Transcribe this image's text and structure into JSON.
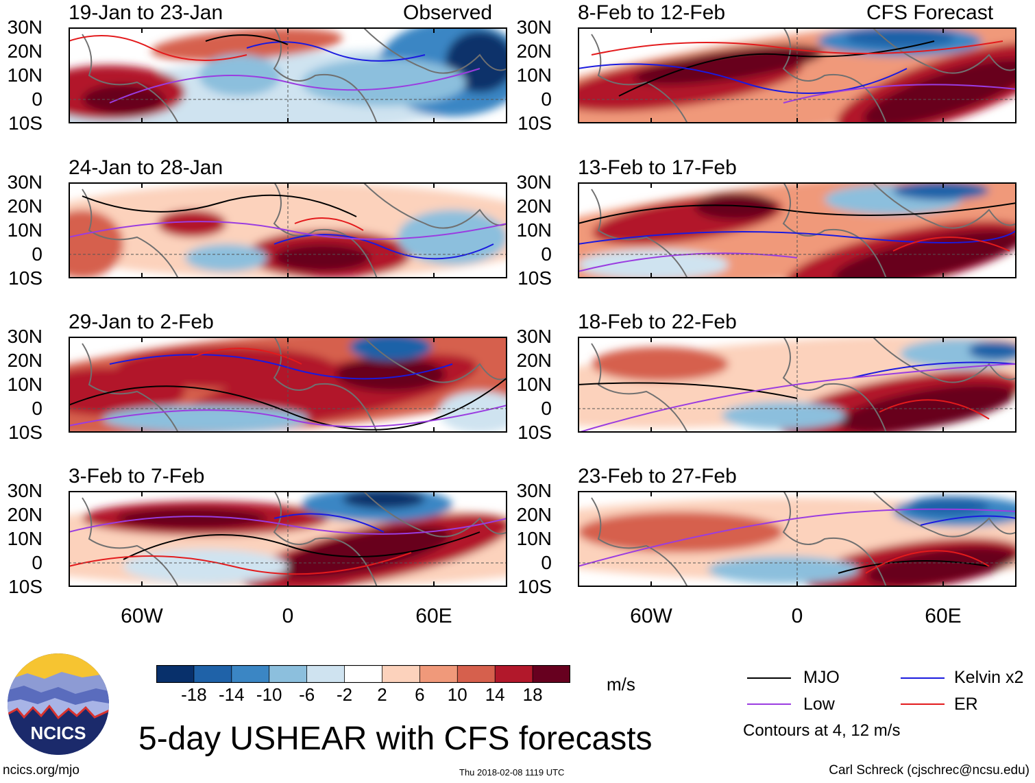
{
  "headers": {
    "observed": "Observed",
    "forecast": "CFS Forecast"
  },
  "lat_labels": [
    "30N",
    "20N",
    "10N",
    "0",
    "10S"
  ],
  "lon_labels": [
    "60W",
    "0",
    "60E"
  ],
  "panels": [
    {
      "title": "19-Jan to 23-Jan",
      "column": "observed",
      "row": 0
    },
    {
      "title": "24-Jan to 28-Jan",
      "column": "observed",
      "row": 1
    },
    {
      "title": "29-Jan to 2-Feb",
      "column": "observed",
      "row": 2
    },
    {
      "title": "3-Feb to 7-Feb",
      "column": "observed",
      "row": 3
    },
    {
      "title": "8-Feb to 12-Feb",
      "column": "forecast",
      "row": 0
    },
    {
      "title": "13-Feb to 17-Feb",
      "column": "forecast",
      "row": 1
    },
    {
      "title": "18-Feb to 22-Feb",
      "column": "forecast",
      "row": 2
    },
    {
      "title": "23-Feb to 27-Feb",
      "column": "forecast",
      "row": 3
    }
  ],
  "colorbar": {
    "ticks": [
      "-18",
      "-14",
      "-10",
      "-6",
      "-2",
      "2",
      "6",
      "10",
      "14",
      "18"
    ],
    "colors": [
      "#08306b",
      "#1f62a8",
      "#3b86c4",
      "#8cbfdd",
      "#cfe3f0",
      "#ffffff",
      "#fcd2bc",
      "#f0997a",
      "#d6604d",
      "#b2182b",
      "#67001f"
    ],
    "units": "m/s"
  },
  "legend": {
    "items": [
      {
        "label": "MJO",
        "color": "#000000"
      },
      {
        "label": "Kelvin x2",
        "color": "#1a1adf"
      },
      {
        "label": "Low",
        "color": "#9a3ce0"
      },
      {
        "label": "ER",
        "color": "#e31a1c"
      }
    ],
    "note": "Contours at 4, 12 m/s"
  },
  "title": "5-day USHEAR with CFS forecasts",
  "logo_text": "NCICS",
  "footer": {
    "left": "ncics.org/mjo",
    "center": "Thu 2018-02-08 1119 UTC",
    "right": "Carl Schreck (cjschrec@ncsu.edu)"
  }
}
